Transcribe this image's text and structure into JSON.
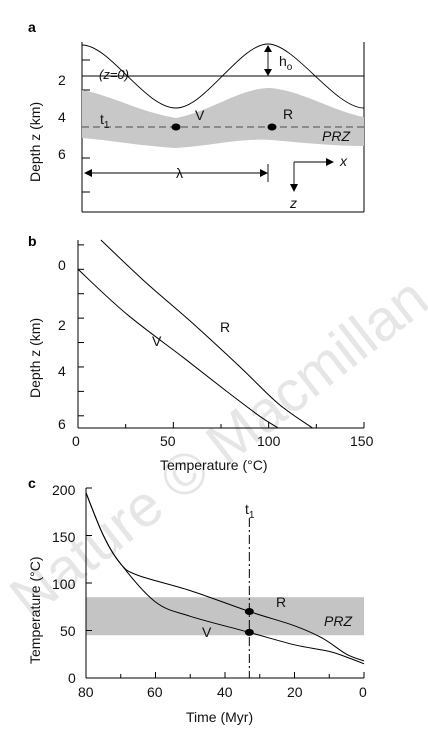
{
  "watermark": "Nature © Macmillan",
  "panels": {
    "a": {
      "label": "a",
      "y_axis_label": "Depth z (km)",
      "y_ticks": [
        "2",
        "4",
        "6"
      ],
      "ann_z0": "(z=0)",
      "ann_h": "h",
      "ann_h_sub": "o",
      "ann_t": "t",
      "ann_t_sub": "1",
      "ann_V": "V",
      "ann_R": "R",
      "ann_PRZ": "PRZ",
      "ann_lambda": "λ",
      "ann_x": "x",
      "ann_z": "z"
    },
    "b": {
      "label": "b",
      "x_axis_label": "Temperature (°C)",
      "y_axis_label": "Depth z (km)",
      "x_ticks": [
        "0",
        "50",
        "100",
        "150"
      ],
      "y_ticks": [
        "0",
        "2",
        "4",
        "6"
      ],
      "ann_R": "R",
      "ann_V": "V"
    },
    "c": {
      "label": "c",
      "x_axis_label": "Time (Myr)",
      "y_axis_label": "Temperature (°C)",
      "x_ticks": [
        "80",
        "60",
        "40",
        "20",
        "0"
      ],
      "y_ticks": [
        "0",
        "50",
        "100",
        "150",
        "200"
      ],
      "ann_t": "t",
      "ann_t_sub": "1",
      "ann_R": "R",
      "ann_V": "V",
      "ann_PRZ": "PRZ"
    }
  },
  "chart_data": [
    {
      "type": "line",
      "panel": "b",
      "xlabel": "Temperature (°C)",
      "ylabel": "Depth z (km)",
      "xlim": [
        0,
        150
      ],
      "ylim": [
        6.5,
        -1.2
      ],
      "y_inverted": true,
      "series": [
        {
          "name": "R",
          "x": [
            12,
            35,
            60,
            85,
            105,
            123
          ],
          "y": [
            -1.2,
            0.5,
            2.2,
            4.0,
            5.5,
            6.5
          ]
        },
        {
          "name": "V",
          "x": [
            0,
            25,
            55,
            78,
            95,
            105
          ],
          "y": [
            0.0,
            1.8,
            3.6,
            5.0,
            6.0,
            6.5
          ]
        }
      ]
    },
    {
      "type": "line",
      "panel": "c",
      "xlabel": "Time (Myr)",
      "ylabel": "Temperature (°C)",
      "xlim": [
        80,
        0
      ],
      "ylim": [
        0,
        200
      ],
      "shaded_band": {
        "label": "PRZ",
        "y": [
          45,
          85
        ]
      },
      "marker_line": {
        "label": "t1",
        "x": 33
      },
      "series": [
        {
          "name": "R",
          "x": [
            80,
            75,
            70,
            65,
            50,
            33,
            20,
            12,
            5,
            0
          ],
          "y": [
            195,
            150,
            120,
            108,
            92,
            70,
            55,
            42,
            25,
            18
          ]
        },
        {
          "name": "V",
          "x": [
            80,
            75,
            70,
            60,
            50,
            33,
            20,
            10,
            5,
            0
          ],
          "y": [
            195,
            150,
            120,
            80,
            65,
            48,
            35,
            28,
            22,
            15
          ]
        }
      ],
      "points": [
        {
          "series": "R",
          "x": 33,
          "y": 70
        },
        {
          "series": "V",
          "x": 33,
          "y": 48
        }
      ]
    }
  ]
}
